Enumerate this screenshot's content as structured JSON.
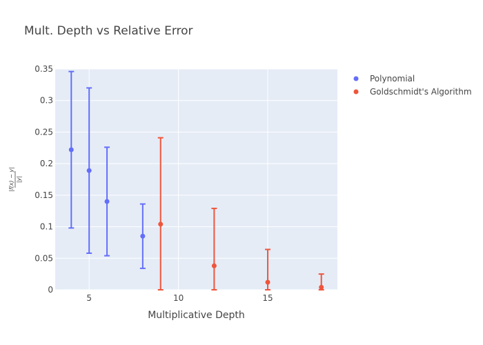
{
  "chart_data": {
    "type": "scatter",
    "title": "Mult. Depth vs Relative Error",
    "xlabel": "Multiplicative Depth",
    "ylabel": {
      "numerator": "|f(x) − y|",
      "denominator": "|y|"
    },
    "xlim": [
      3.1,
      18.9
    ],
    "ylim": [
      0,
      0.35
    ],
    "xticks": [
      5,
      10,
      15
    ],
    "xtick_labels": [
      "5",
      "10",
      "15"
    ],
    "yticks": [
      0,
      0.05,
      0.1,
      0.15,
      0.2,
      0.25,
      0.3,
      0.35
    ],
    "ytick_labels": [
      "0",
      "0.05",
      "0.1",
      "0.15",
      "0.2",
      "0.25",
      "0.3",
      "0.35"
    ],
    "grid": true,
    "legend_position": "top-right-outside",
    "series": [
      {
        "name": "Polynomial",
        "color": "#636efa",
        "points": [
          {
            "x": 4,
            "y": 0.222,
            "lo": 0.098,
            "hi": 0.346
          },
          {
            "x": 5,
            "y": 0.189,
            "lo": 0.058,
            "hi": 0.32
          },
          {
            "x": 6,
            "y": 0.14,
            "lo": 0.054,
            "hi": 0.226
          },
          {
            "x": 8,
            "y": 0.085,
            "lo": 0.034,
            "hi": 0.136
          }
        ]
      },
      {
        "name": "Goldschmidt's Algorithm",
        "color": "#ef553b",
        "points": [
          {
            "x": 9,
            "y": 0.104,
            "lo": 0.0,
            "hi": 0.241
          },
          {
            "x": 12,
            "y": 0.038,
            "lo": 0.0,
            "hi": 0.129
          },
          {
            "x": 15,
            "y": 0.012,
            "lo": 0.0,
            "hi": 0.064
          },
          {
            "x": 18,
            "y": 0.004,
            "lo": 0.0,
            "hi": 0.025
          }
        ]
      }
    ]
  }
}
